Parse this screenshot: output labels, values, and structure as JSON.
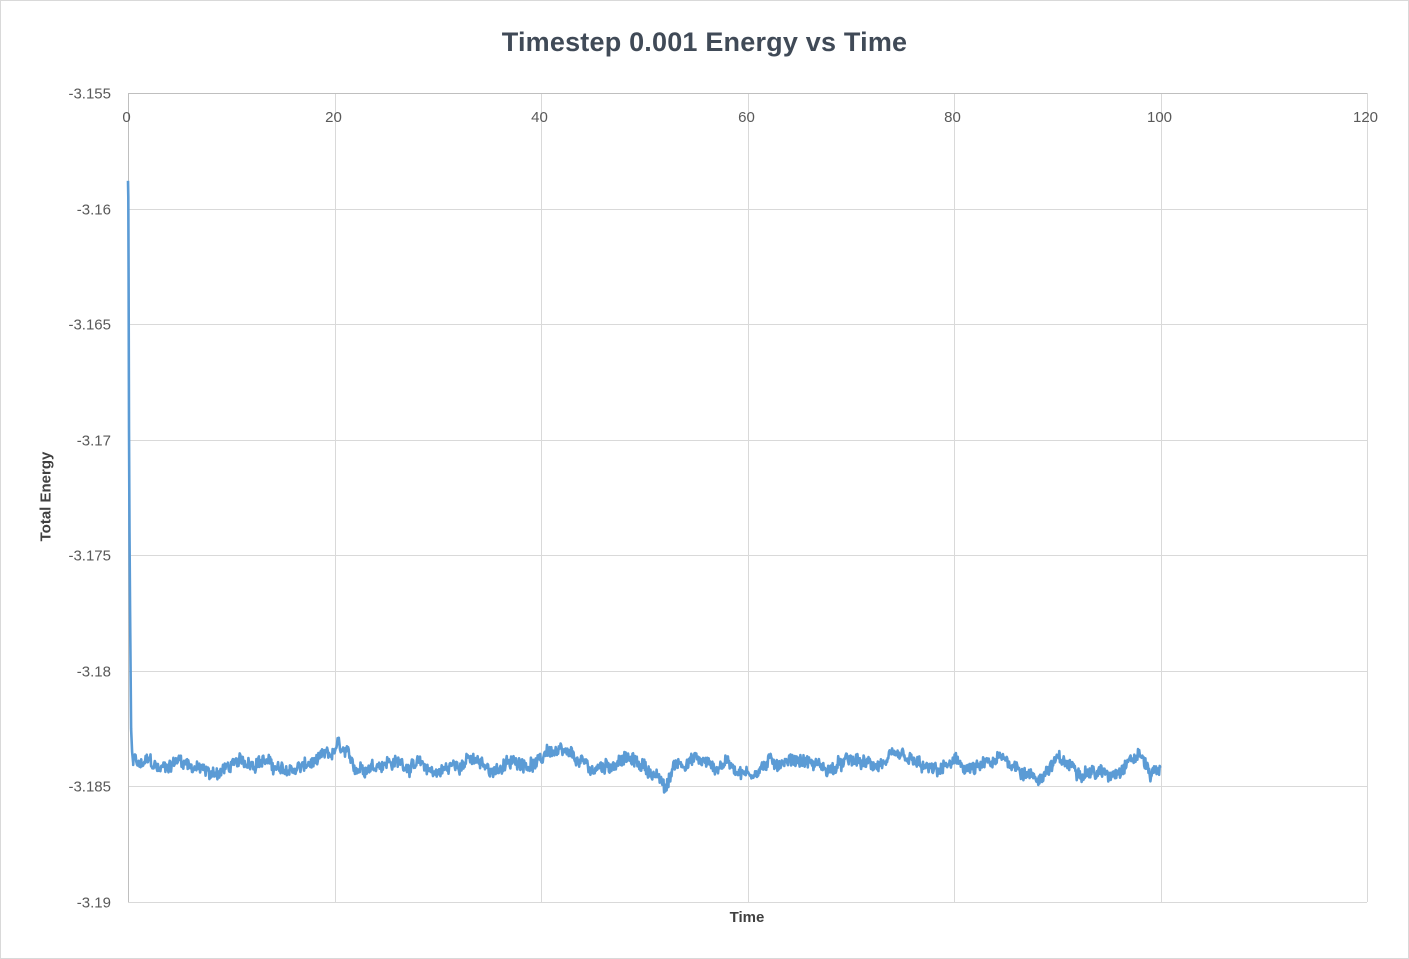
{
  "chart_data": {
    "type": "line",
    "title": "Timestep 0.001 Energy vs Time",
    "xlabel": "Time",
    "ylabel": "Total Energy",
    "xlim": [
      0,
      120
    ],
    "ylim": [
      -3.19,
      -3.155
    ],
    "x_ticks": [
      "0",
      "20",
      "40",
      "60",
      "80",
      "100",
      "120"
    ],
    "y_ticks": [
      "-3.155",
      "-3.16",
      "-3.165",
      "-3.17",
      "-3.175",
      "-3.18",
      "-3.185",
      "-3.19"
    ],
    "x_axis_position": "top",
    "grid": true,
    "legend": "none",
    "series": [
      {
        "color": "#5b9bd5",
        "x": [
          0,
          0.03,
          0.06,
          0.1,
          0.15,
          0.2,
          0.25,
          0.3,
          0.4,
          0.5,
          0.7,
          1,
          2,
          3,
          5,
          8,
          10,
          13,
          15,
          18,
          20,
          20.2,
          22,
          25,
          28,
          30,
          33,
          35,
          38,
          40,
          40.5,
          43,
          45,
          48,
          50,
          51.5,
          52,
          53,
          55,
          57,
          58,
          60,
          62,
          65,
          68,
          70,
          72,
          75,
          78,
          80,
          82,
          85,
          88,
          90,
          92,
          95,
          97,
          98,
          99,
          100
        ],
        "y": [
          -3.1588,
          -3.1595,
          -3.163,
          -3.1695,
          -3.174,
          -3.1775,
          -3.18,
          -3.1825,
          -3.1835,
          -3.184,
          -3.1838,
          -3.1842,
          -3.1839,
          -3.1843,
          -3.1838,
          -3.1845,
          -3.1841,
          -3.1838,
          -3.1844,
          -3.184,
          -3.1836,
          -3.1832,
          -3.1842,
          -3.1839,
          -3.1841,
          -3.1844,
          -3.1838,
          -3.1843,
          -3.1839,
          -3.184,
          -3.1834,
          -3.1838,
          -3.1843,
          -3.1838,
          -3.1841,
          -3.1847,
          -3.1852,
          -3.184,
          -3.1838,
          -3.1842,
          -3.1839,
          -3.1845,
          -3.184,
          -3.1838,
          -3.1843,
          -3.1839,
          -3.1841,
          -3.1838,
          -3.1844,
          -3.184,
          -3.1843,
          -3.1838,
          -3.1847,
          -3.1839,
          -3.1842,
          -3.1845,
          -3.1838,
          -3.1836,
          -3.1844,
          -3.1842
        ]
      }
    ]
  }
}
